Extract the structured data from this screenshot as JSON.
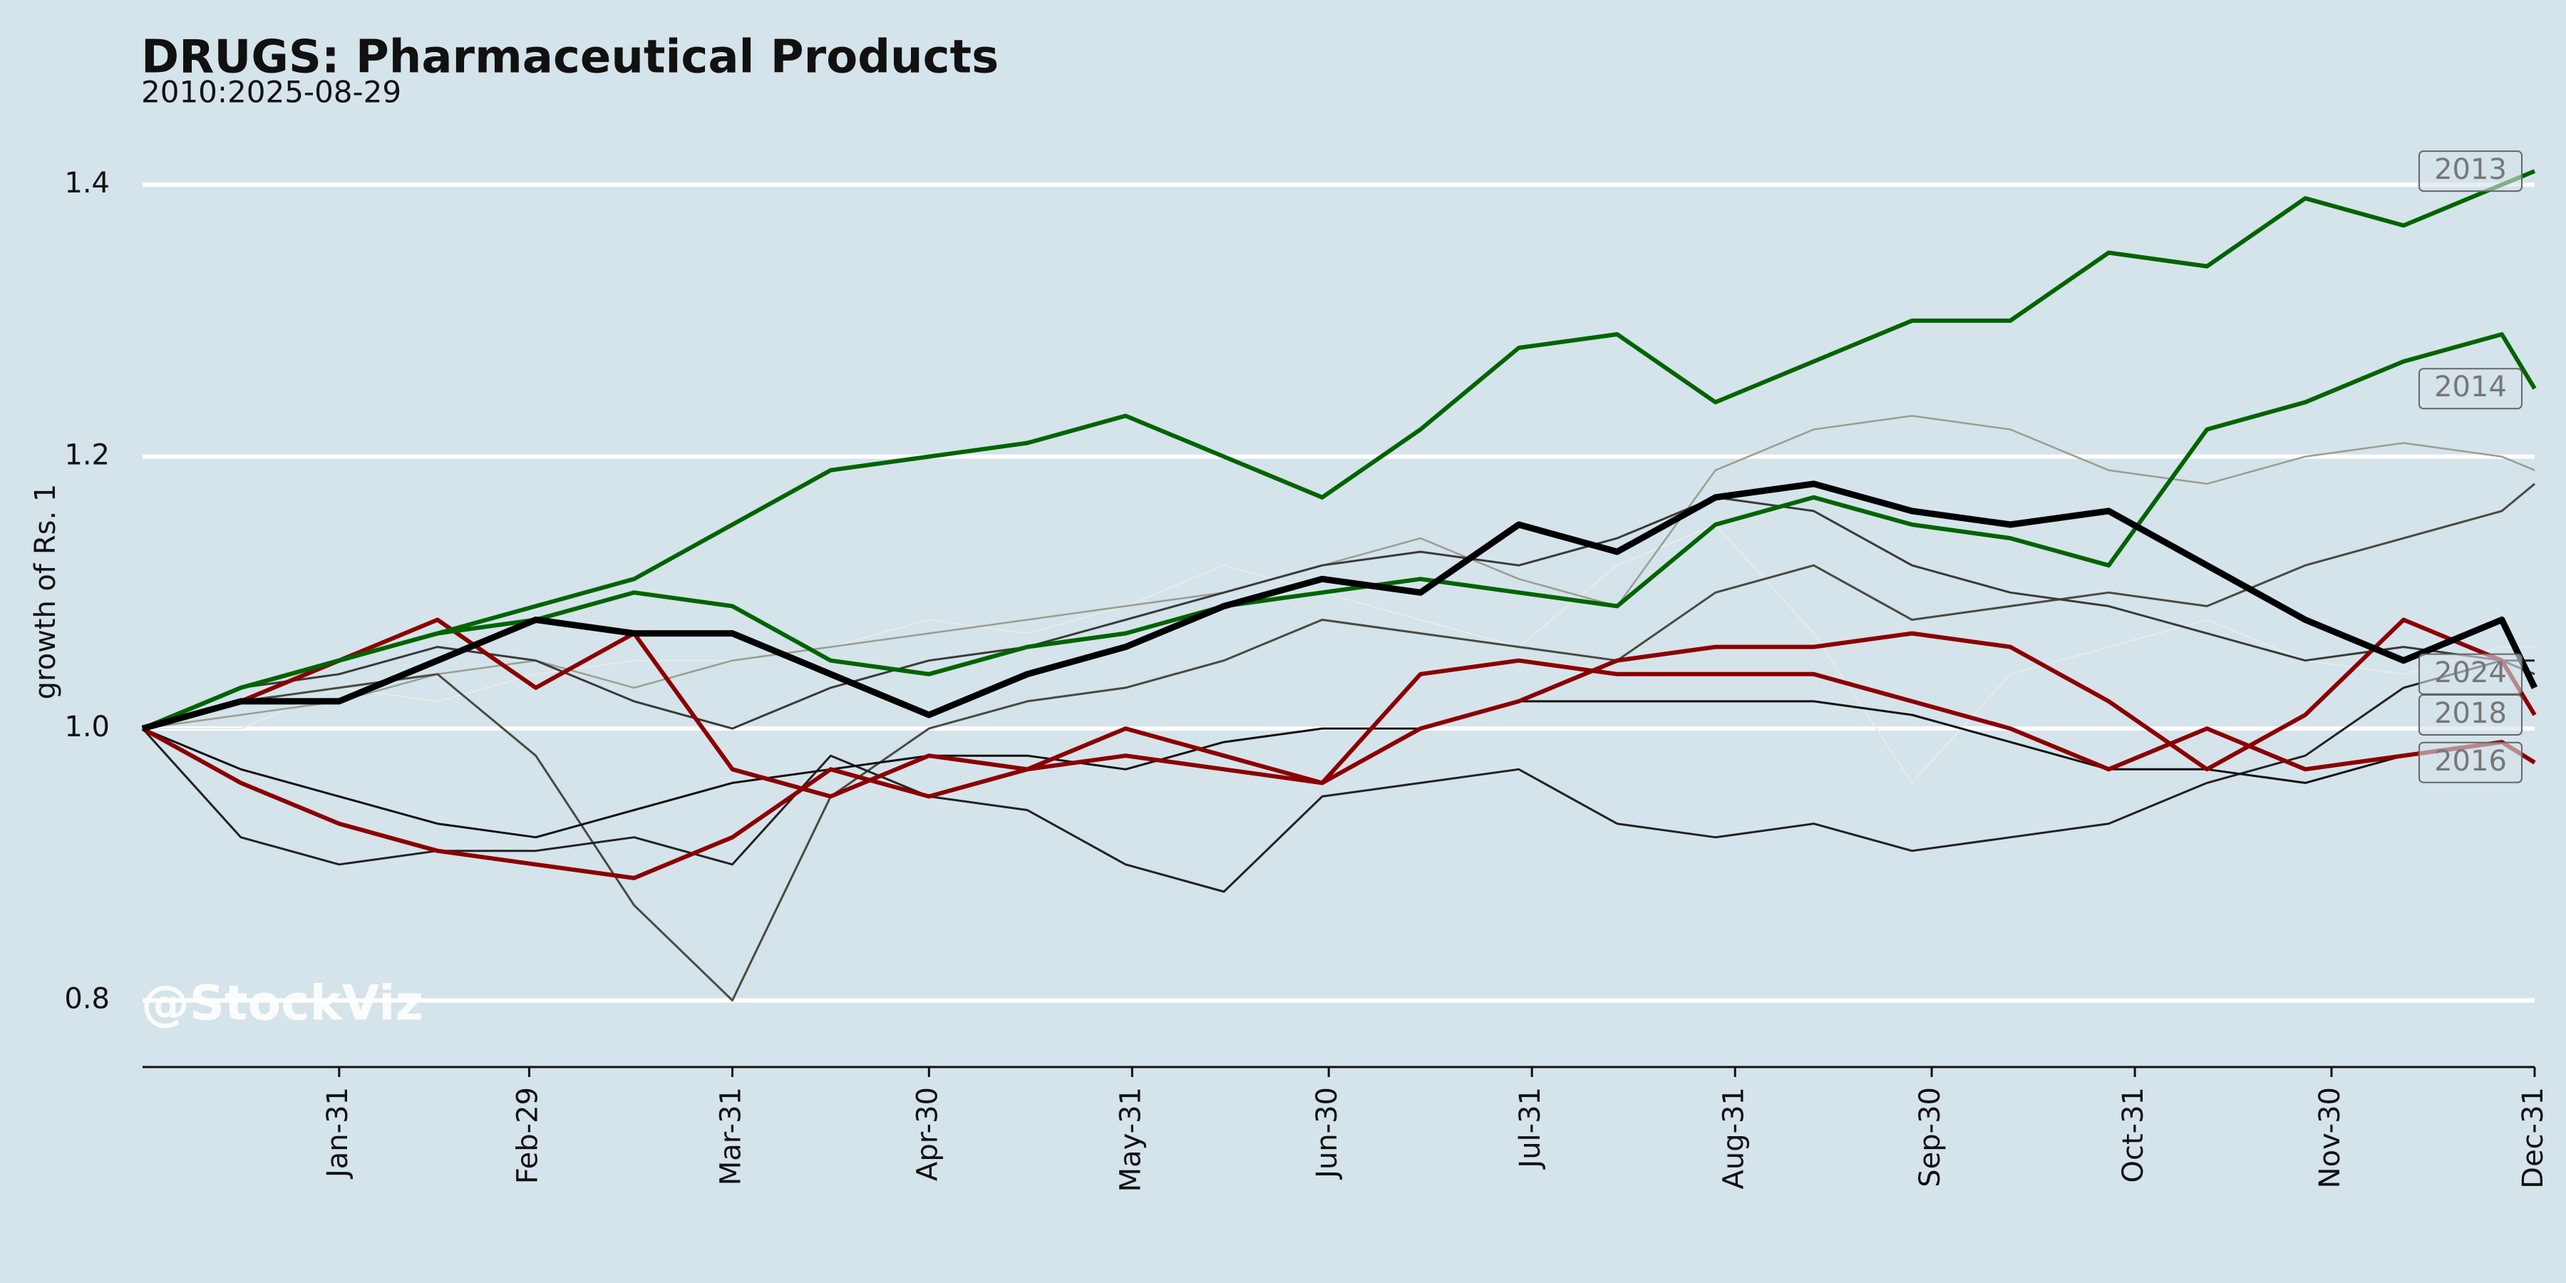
{
  "chart_data": {
    "type": "line",
    "title": "DRUGS: Pharmaceutical Products",
    "subtitle": "2010:2025-08-29",
    "ylabel": "growth of Rs. 1",
    "watermark": "@StockViz",
    "x": [
      1,
      16,
      31,
      46,
      61,
      76,
      91,
      106,
      121,
      136,
      151,
      166,
      181,
      196,
      211,
      226,
      241,
      256,
      271,
      286,
      301,
      316,
      331,
      346,
      361,
      366
    ],
    "xlim": [
      1,
      366
    ],
    "xticks": [
      {
        "value": 31,
        "label": "Jan-31"
      },
      {
        "value": 60,
        "label": "Feb-29"
      },
      {
        "value": 91,
        "label": "Mar-31"
      },
      {
        "value": 121,
        "label": "Apr-30"
      },
      {
        "value": 152,
        "label": "May-31"
      },
      {
        "value": 182,
        "label": "Jun-30"
      },
      {
        "value": 213,
        "label": "Jul-31"
      },
      {
        "value": 244,
        "label": "Aug-31"
      },
      {
        "value": 274,
        "label": "Sep-30"
      },
      {
        "value": 305,
        "label": "Oct-31"
      },
      {
        "value": 335,
        "label": "Nov-30"
      },
      {
        "value": 366,
        "label": "Dec-31"
      }
    ],
    "ylim": [
      0.751,
      1.42
    ],
    "yticks": [
      0.8,
      {
        "value": 1.0,
        "label": "1.0"
      },
      1.2,
      1.4
    ],
    "grid": true,
    "series": [
      {
        "color": "#e6ece8",
        "linewidth": 2,
        "values": [
          1.0,
          1.0,
          1.03,
          1.02,
          1.04,
          1.05,
          1.05,
          1.06,
          1.08,
          1.07,
          1.09,
          1.12,
          1.1,
          1.08,
          1.06,
          1.12,
          1.15,
          1.07,
          0.96,
          1.04,
          1.06,
          1.08,
          1.05,
          1.04,
          1.06,
          1.06
        ]
      },
      {
        "color": "#9a9e90",
        "linewidth": 2.5,
        "values": [
          1.0,
          1.01,
          1.02,
          1.04,
          1.05,
          1.03,
          1.05,
          1.06,
          1.07,
          1.08,
          1.09,
          1.1,
          1.12,
          1.14,
          1.11,
          1.09,
          1.19,
          1.22,
          1.23,
          1.22,
          1.19,
          1.18,
          1.2,
          1.21,
          1.2,
          1.19
        ]
      },
      {
        "color": "#4a4a40",
        "linewidth": 3,
        "values": [
          1.0,
          1.02,
          1.03,
          1.04,
          0.98,
          0.87,
          0.8,
          0.95,
          1.0,
          1.02,
          1.03,
          1.05,
          1.08,
          1.07,
          1.06,
          1.05,
          1.1,
          1.12,
          1.08,
          1.09,
          1.1,
          1.09,
          1.12,
          1.14,
          1.16,
          1.18
        ]
      },
      {
        "color": "#222222",
        "linewidth": 3,
        "values": [
          1.0,
          0.92,
          0.9,
          0.91,
          0.91,
          0.92,
          0.9,
          0.98,
          0.95,
          0.94,
          0.9,
          0.88,
          0.95,
          0.96,
          0.97,
          0.93,
          0.92,
          0.93,
          0.91,
          0.92,
          0.93,
          0.96,
          0.98,
          1.03,
          1.05,
          1.05
        ]
      },
      {
        "name": "2024",
        "color": "#3a3a3a",
        "linewidth": 3,
        "values": [
          1.0,
          1.03,
          1.04,
          1.06,
          1.05,
          1.02,
          1.0,
          1.03,
          1.05,
          1.06,
          1.08,
          1.1,
          1.12,
          1.13,
          1.12,
          1.14,
          1.17,
          1.16,
          1.12,
          1.1,
          1.09,
          1.07,
          1.05,
          1.06,
          1.05,
          1.04
        ]
      },
      {
        "name": "2016",
        "color": "#111111",
        "linewidth": 3,
        "values": [
          1.0,
          0.97,
          0.95,
          0.93,
          0.92,
          0.94,
          0.96,
          0.97,
          0.98,
          0.98,
          0.97,
          0.99,
          1.0,
          1.0,
          1.02,
          1.02,
          1.02,
          1.02,
          1.01,
          0.99,
          0.97,
          0.97,
          0.96,
          0.98,
          0.99,
          0.975
        ]
      },
      {
        "color": "#8b0000",
        "linewidth": 6,
        "values": [
          1.0,
          1.02,
          1.05,
          1.08,
          1.03,
          1.07,
          0.97,
          0.95,
          0.98,
          0.97,
          0.98,
          0.97,
          0.96,
          1.04,
          1.05,
          1.04,
          1.04,
          1.04,
          1.02,
          1.0,
          0.97,
          1.0,
          0.97,
          0.98,
          0.99,
          0.975
        ]
      },
      {
        "name": "2018",
        "color": "#8b0000",
        "linewidth": 6,
        "values": [
          1.0,
          0.96,
          0.93,
          0.91,
          0.9,
          0.89,
          0.92,
          0.97,
          0.95,
          0.97,
          1.0,
          0.98,
          0.96,
          1.0,
          1.02,
          1.05,
          1.06,
          1.06,
          1.07,
          1.06,
          1.02,
          0.97,
          1.01,
          1.08,
          1.05,
          1.01
        ]
      },
      {
        "name": "2014",
        "color": "#006400",
        "linewidth": 6,
        "values": [
          1.0,
          1.03,
          1.05,
          1.07,
          1.08,
          1.1,
          1.09,
          1.05,
          1.04,
          1.06,
          1.07,
          1.09,
          1.1,
          1.11,
          1.1,
          1.09,
          1.15,
          1.17,
          1.15,
          1.14,
          1.12,
          1.22,
          1.24,
          1.27,
          1.29,
          1.25
        ]
      },
      {
        "name": "2013",
        "color": "#006400",
        "linewidth": 6,
        "values": [
          1.0,
          1.03,
          1.05,
          1.07,
          1.09,
          1.11,
          1.15,
          1.19,
          1.2,
          1.21,
          1.23,
          1.2,
          1.17,
          1.22,
          1.28,
          1.29,
          1.24,
          1.27,
          1.3,
          1.3,
          1.35,
          1.34,
          1.39,
          1.37,
          1.4,
          1.41
        ]
      },
      {
        "color": "#000000",
        "linewidth": 9,
        "values": [
          1.0,
          1.02,
          1.02,
          1.05,
          1.08,
          1.07,
          1.07,
          1.04,
          1.01,
          1.04,
          1.06,
          1.09,
          1.11,
          1.1,
          1.15,
          1.13,
          1.17,
          1.18,
          1.16,
          1.15,
          1.16,
          1.12,
          1.08,
          1.05,
          1.08,
          1.03
        ]
      }
    ]
  }
}
